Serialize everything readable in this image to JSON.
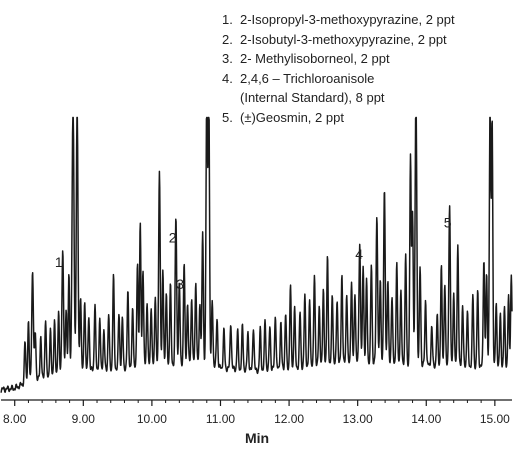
{
  "chart_data": {
    "type": "line",
    "title": "",
    "xlabel": "Min",
    "ylabel": "",
    "xlim": [
      7.8,
      15.25
    ],
    "ylim": [
      0,
      100
    ],
    "x_ticks": [
      8,
      9,
      10,
      11,
      12,
      13,
      14,
      15
    ],
    "x_tick_labels": [
      "8.00",
      "9.00",
      "10.00",
      "11.00",
      "12.00",
      "13.00",
      "14.00",
      "15.00"
    ],
    "grid": false,
    "legend_position": "top-right",
    "legend": [
      {
        "num": "1.",
        "lines": [
          "2-Isopropyl-3-methoxypyrazine, 2 ppt"
        ]
      },
      {
        "num": "2.",
        "lines": [
          "2-Isobutyl-3-methoxypyrazine, 2 ppt"
        ]
      },
      {
        "num": "3.",
        "lines": [
          "2- Methylisoborneol, 2 ppt"
        ]
      },
      {
        "num": "4.",
        "lines": [
          "2,4,6 – Trichloroanisole",
          "(Internal Standard), 8 ppt"
        ]
      },
      {
        "num": "5.",
        "lines": [
          "(±)Geosmin, 2 ppt"
        ]
      }
    ],
    "annotations": [
      {
        "label": "1",
        "x": 8.7,
        "y": 47.0
      },
      {
        "label": "2",
        "x": 10.36,
        "y": 56.0
      },
      {
        "label": "3",
        "x": 10.47,
        "y": 39.0
      },
      {
        "label": "4",
        "x": 13.08,
        "y": 50.0
      },
      {
        "label": "5",
        "x": 14.37,
        "y": 61.5
      }
    ],
    "baseline": [
      [
        7.8,
        2.0
      ],
      [
        8.0,
        2.5
      ],
      [
        8.2,
        5.0
      ],
      [
        8.6,
        7.0
      ],
      [
        9.0,
        9.0
      ],
      [
        9.6,
        10.0
      ],
      [
        10.2,
        11.0
      ],
      [
        10.7,
        12.0
      ],
      [
        11.0,
        10.0
      ],
      [
        11.5,
        9.0
      ],
      [
        12.0,
        10.0
      ],
      [
        12.5,
        11.0
      ],
      [
        13.0,
        12.0
      ],
      [
        13.5,
        12.0
      ],
      [
        14.0,
        11.0
      ],
      [
        14.5,
        11.0
      ],
      [
        15.0,
        10.0
      ],
      [
        15.25,
        10.0
      ]
    ],
    "peaks": [
      [
        8.15,
        15,
        0.01
      ],
      [
        8.2,
        22,
        0.01
      ],
      [
        8.26,
        40,
        0.012
      ],
      [
        8.3,
        18,
        0.01
      ],
      [
        8.38,
        16,
        0.01
      ],
      [
        8.45,
        22,
        0.01
      ],
      [
        8.52,
        18,
        0.01
      ],
      [
        8.58,
        21,
        0.01
      ],
      [
        8.64,
        24,
        0.01
      ],
      [
        8.7,
        46,
        0.012
      ],
      [
        8.75,
        24,
        0.01
      ],
      [
        8.79,
        36,
        0.01
      ],
      [
        8.85,
        100,
        0.014
      ],
      [
        8.91,
        100,
        0.012
      ],
      [
        8.96,
        28,
        0.01
      ],
      [
        9.02,
        26,
        0.01
      ],
      [
        9.08,
        20,
        0.01
      ],
      [
        9.17,
        24,
        0.01
      ],
      [
        9.24,
        18,
        0.01
      ],
      [
        9.3,
        14,
        0.01
      ],
      [
        9.37,
        20,
        0.01
      ],
      [
        9.44,
        34,
        0.01
      ],
      [
        9.52,
        20,
        0.01
      ],
      [
        9.57,
        18,
        0.01
      ],
      [
        9.65,
        28,
        0.01
      ],
      [
        9.72,
        22,
        0.01
      ],
      [
        9.79,
        39,
        0.01
      ],
      [
        9.83,
        52,
        0.01
      ],
      [
        9.87,
        36,
        0.01
      ],
      [
        9.93,
        24,
        0.01
      ],
      [
        9.99,
        22,
        0.01
      ],
      [
        10.05,
        26,
        0.01
      ],
      [
        10.11,
        72,
        0.011
      ],
      [
        10.16,
        34,
        0.01
      ],
      [
        10.21,
        26,
        0.01
      ],
      [
        10.27,
        30,
        0.01
      ],
      [
        10.35,
        54,
        0.011
      ],
      [
        10.4,
        30,
        0.01
      ],
      [
        10.47,
        37,
        0.01
      ],
      [
        10.52,
        22,
        0.01
      ],
      [
        10.58,
        24,
        0.01
      ],
      [
        10.64,
        30,
        0.01
      ],
      [
        10.7,
        22,
        0.01
      ],
      [
        10.74,
        48,
        0.01
      ],
      [
        10.8,
        100,
        0.011
      ],
      [
        10.83,
        100,
        0.01
      ],
      [
        10.88,
        24,
        0.01
      ],
      [
        10.95,
        18,
        0.01
      ],
      [
        11.05,
        14,
        0.01
      ],
      [
        11.15,
        17,
        0.01
      ],
      [
        11.25,
        14,
        0.01
      ],
      [
        11.32,
        16,
        0.01
      ],
      [
        11.4,
        14,
        0.01
      ],
      [
        11.48,
        16,
        0.01
      ],
      [
        11.58,
        15,
        0.01
      ],
      [
        11.65,
        18,
        0.01
      ],
      [
        11.72,
        16,
        0.01
      ],
      [
        11.8,
        20,
        0.01
      ],
      [
        11.88,
        17,
        0.01
      ],
      [
        11.95,
        20,
        0.01
      ],
      [
        12.02,
        30,
        0.01
      ],
      [
        12.08,
        22,
        0.01
      ],
      [
        12.16,
        20,
        0.01
      ],
      [
        12.23,
        26,
        0.01
      ],
      [
        12.3,
        24,
        0.01
      ],
      [
        12.37,
        34,
        0.01
      ],
      [
        12.44,
        22,
        0.01
      ],
      [
        12.5,
        28,
        0.01
      ],
      [
        12.56,
        40,
        0.01
      ],
      [
        12.63,
        26,
        0.01
      ],
      [
        12.7,
        24,
        0.01
      ],
      [
        12.77,
        33,
        0.01
      ],
      [
        12.84,
        26,
        0.01
      ],
      [
        12.91,
        30,
        0.01
      ],
      [
        12.96,
        26,
        0.01
      ],
      [
        13.03,
        44,
        0.011
      ],
      [
        13.08,
        36,
        0.01
      ],
      [
        13.13,
        30,
        0.01
      ],
      [
        13.2,
        36,
        0.01
      ],
      [
        13.28,
        54,
        0.011
      ],
      [
        13.33,
        30,
        0.01
      ],
      [
        13.39,
        63,
        0.011
      ],
      [
        13.44,
        30,
        0.01
      ],
      [
        13.5,
        24,
        0.01
      ],
      [
        13.57,
        36,
        0.01
      ],
      [
        13.63,
        26,
        0.01
      ],
      [
        13.7,
        40,
        0.01
      ],
      [
        13.77,
        76,
        0.01
      ],
      [
        13.8,
        56,
        0.01
      ],
      [
        13.85,
        100,
        0.012
      ],
      [
        13.91,
        36,
        0.01
      ],
      [
        13.99,
        24,
        0.01
      ],
      [
        14.08,
        14,
        0.01
      ],
      [
        14.16,
        18,
        0.01
      ],
      [
        14.22,
        36,
        0.01
      ],
      [
        14.27,
        30,
        0.01
      ],
      [
        14.34,
        58,
        0.011
      ],
      [
        14.4,
        26,
        0.01
      ],
      [
        14.46,
        44,
        0.01
      ],
      [
        14.53,
        22,
        0.01
      ],
      [
        14.6,
        20,
        0.01
      ],
      [
        14.68,
        26,
        0.01
      ],
      [
        14.75,
        28,
        0.01
      ],
      [
        14.84,
        40,
        0.01
      ],
      [
        14.88,
        34,
        0.01
      ],
      [
        14.93,
        97,
        0.01
      ],
      [
        14.96,
        92,
        0.01
      ],
      [
        15.02,
        24,
        0.01
      ],
      [
        15.08,
        20,
        0.01
      ],
      [
        15.14,
        22,
        0.01
      ],
      [
        15.2,
        26,
        0.01
      ],
      [
        15.24,
        34,
        0.01
      ]
    ]
  }
}
